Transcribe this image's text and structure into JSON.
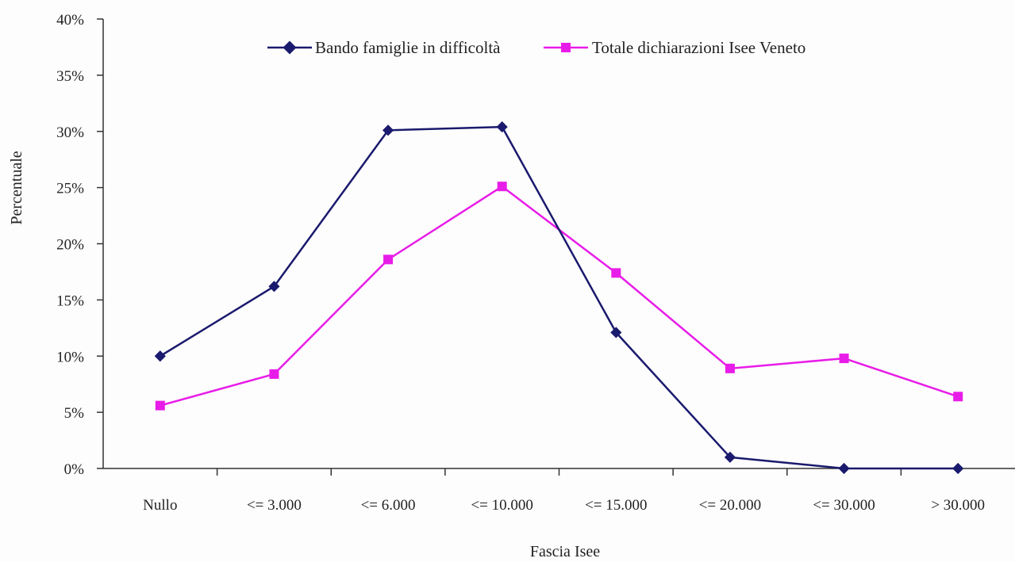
{
  "chart_data": {
    "type": "line",
    "title": "",
    "xlabel": "Fascia Isee",
    "ylabel": "Percentuale",
    "ylim": [
      0,
      40
    ],
    "yticks": [
      "0%",
      "5%",
      "10%",
      "15%",
      "20%",
      "25%",
      "30%",
      "35%",
      "40%"
    ],
    "categories": [
      "Nullo",
      "<= 3.000",
      "<= 6.000",
      "<= 10.000",
      "<= 15.000",
      "<= 20.000",
      "<= 30.000",
      "> 30.000"
    ],
    "series": [
      {
        "name": "Bando famiglie in difficoltà",
        "color": "#1a1a6e",
        "marker": "diamond",
        "values": [
          10.0,
          16.2,
          30.1,
          30.4,
          12.1,
          1.0,
          0.0,
          0.0
        ]
      },
      {
        "name": "Totale dichiarazioni Isee Veneto",
        "color": "#e81ce8",
        "marker": "square",
        "values": [
          5.6,
          8.4,
          18.6,
          25.1,
          17.4,
          8.9,
          9.8,
          6.4
        ]
      }
    ],
    "grid": false,
    "legend_position": "top"
  }
}
